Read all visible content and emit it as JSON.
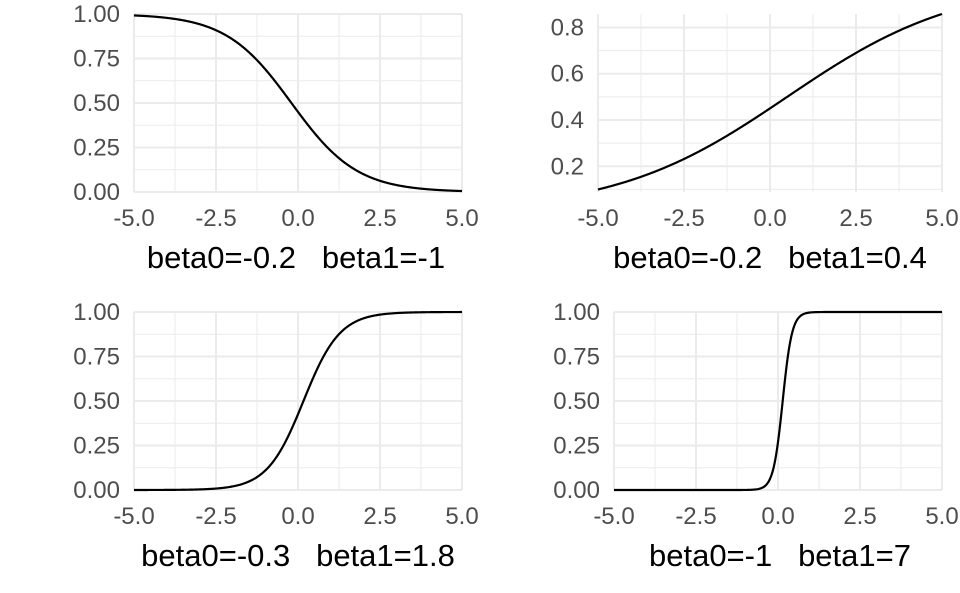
{
  "chart_data": [
    {
      "type": "line",
      "xlabel": "beta0=-0.2   beta1=-1",
      "beta0": -0.2,
      "beta1": -1,
      "xlim": [
        -5,
        5
      ],
      "ylim": [
        0,
        1
      ],
      "x_ticks": [
        -5.0,
        -2.5,
        0.0,
        2.5,
        5.0
      ],
      "x_tick_labels": [
        "-5.0",
        "-2.5",
        "0.0",
        "2.5",
        "5.0"
      ],
      "y_ticks": [
        0.0,
        0.25,
        0.5,
        0.75,
        1.0
      ],
      "y_tick_labels": [
        "0.00",
        "0.25",
        "0.50",
        "0.75",
        "1.00"
      ],
      "x": [
        -5,
        -4,
        -3,
        -2,
        -1,
        0,
        1,
        2,
        3,
        4,
        5
      ],
      "y": [
        0.992,
        0.978,
        0.943,
        0.858,
        0.69,
        0.45,
        0.231,
        0.1,
        0.039,
        0.015,
        0.006
      ],
      "grid": true
    },
    {
      "type": "line",
      "xlabel": "beta0=-0.2   beta1=0.4",
      "beta0": -0.2,
      "beta1": 0.4,
      "xlim": [
        -5,
        5
      ],
      "ylim": [
        0.0888,
        0.8581
      ],
      "x_ticks": [
        -5.0,
        -2.5,
        0.0,
        2.5,
        5.0
      ],
      "x_tick_labels": [
        "-5.0",
        "-2.5",
        "0.0",
        "2.5",
        "5.0"
      ],
      "y_ticks": [
        0.2,
        0.4,
        0.6,
        0.8
      ],
      "y_tick_labels": [
        "0.2",
        "0.4",
        "0.6",
        "0.8"
      ],
      "x": [
        -5,
        -4,
        -3,
        -2,
        -1,
        0,
        1,
        2,
        3,
        4,
        5
      ],
      "y": [
        0.1,
        0.142,
        0.198,
        0.269,
        0.354,
        0.45,
        0.55,
        0.646,
        0.731,
        0.802,
        0.858
      ],
      "grid": true
    },
    {
      "type": "line",
      "xlabel": "beta0=-0.3   beta1=1.8",
      "beta0": -0.3,
      "beta1": 1.8,
      "xlim": [
        -5,
        5
      ],
      "ylim": [
        0,
        1
      ],
      "x_ticks": [
        -5.0,
        -2.5,
        0.0,
        2.5,
        5.0
      ],
      "x_tick_labels": [
        "-5.0",
        "-2.5",
        "0.0",
        "2.5",
        "5.0"
      ],
      "y_ticks": [
        0.0,
        0.25,
        0.5,
        0.75,
        1.0
      ],
      "y_tick_labels": [
        "0.00",
        "0.25",
        "0.50",
        "0.75",
        "1.00"
      ],
      "x": [
        -5,
        -4,
        -3,
        -2,
        -1,
        0,
        1,
        2,
        3,
        4,
        5
      ],
      "y": [
        0.0,
        0.001,
        0.003,
        0.018,
        0.109,
        0.426,
        0.818,
        0.964,
        0.994,
        0.999,
        1.0
      ],
      "grid": true
    },
    {
      "type": "line",
      "xlabel": "beta0=-1   beta1=7",
      "beta0": -1,
      "beta1": 7,
      "xlim": [
        -5,
        5
      ],
      "ylim": [
        0,
        1
      ],
      "x_ticks": [
        -5.0,
        -2.5,
        0.0,
        2.5,
        5.0
      ],
      "x_tick_labels": [
        "-5.0",
        "-2.5",
        "0.0",
        "2.5",
        "5.0"
      ],
      "y_ticks": [
        0.0,
        0.25,
        0.5,
        0.75,
        1.0
      ],
      "y_tick_labels": [
        "0.00",
        "0.25",
        "0.50",
        "0.75",
        "1.00"
      ],
      "x": [
        -5,
        -1,
        -0.6,
        -0.4,
        -0.2,
        0,
        0.2,
        0.4,
        0.6,
        1,
        5
      ],
      "y": [
        0.0,
        0.0,
        0.005,
        0.023,
        0.086,
        0.269,
        0.599,
        0.858,
        0.957,
        0.998,
        1.0
      ],
      "grid": true
    }
  ]
}
